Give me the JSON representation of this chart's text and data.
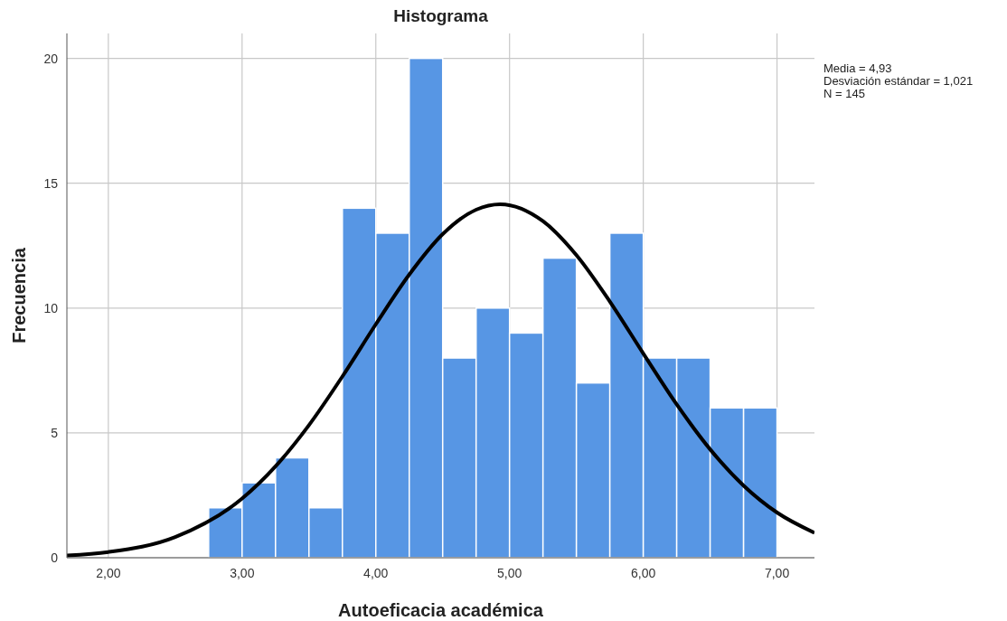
{
  "chart_data": {
    "type": "histogram",
    "title": "Histograma",
    "xlabel": "Autoeficacia académica",
    "ylabel": "Frecuencia",
    "annotations": [
      "Media = 4,93",
      "Desviación estándar = 1,021",
      "N = 145"
    ],
    "bins": [
      2.75,
      3,
      3.25,
      3.5,
      3.75,
      4,
      4.25,
      4.5,
      4.75,
      5,
      5.25,
      5.5,
      5.75,
      6,
      6.25,
      6.5,
      6.75,
      7
    ],
    "series": [
      {
        "color": "#5796e4",
        "values": [
          2,
          3,
          4,
          2,
          14,
          13,
          20,
          8,
          10,
          9,
          12,
          7,
          13,
          8,
          8,
          6,
          6
        ]
      },
      {
        "type": "line",
        "color": "#000000",
        "x": [
          1.69,
          2,
          2.5,
          3,
          3.25,
          3.5,
          3.75,
          4,
          4.25,
          4.5,
          4.75,
          4.93,
          5.25,
          5.5,
          5.75,
          6,
          6.25,
          6.5,
          6.75,
          7,
          7.28
        ],
        "values": [
          0.09,
          0.23,
          0.83,
          2.37,
          3.66,
          5.31,
          7.26,
          9.35,
          11.34,
          12.96,
          13.94,
          14.16,
          13.48,
          12.12,
          10.26,
          8.18,
          6.14,
          4.34,
          2.89,
          1.81,
          1.0
        ]
      }
    ],
    "xlim": [
      1.69,
      7.28
    ],
    "ylim": [
      0,
      21
    ],
    "xticks": [
      {
        "value": 2,
        "label": "2,00"
      },
      {
        "value": 3,
        "label": "3,00"
      },
      {
        "value": 4,
        "label": "4,00"
      },
      {
        "value": 5,
        "label": "5,00"
      },
      {
        "value": 6,
        "label": "6,00"
      },
      {
        "value": 7,
        "label": "7,00"
      }
    ],
    "yticks": [
      0,
      5,
      10,
      15,
      20
    ],
    "grid": true
  }
}
